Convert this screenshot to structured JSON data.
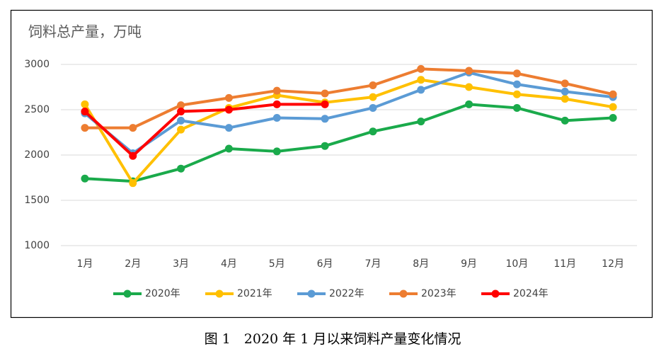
{
  "chart_data": {
    "type": "line",
    "title": "饲料总产量，万吨",
    "caption": "图 1　2020 年 1 月以来饲料产量变化情况",
    "categories": [
      "1月",
      "2月",
      "3月",
      "4月",
      "5月",
      "6月",
      "7月",
      "8月",
      "9月",
      "10月",
      "11月",
      "12月"
    ],
    "ylim": [
      1000,
      3000
    ],
    "yticks": [
      1000,
      1500,
      2000,
      2500,
      3000
    ],
    "grid": true,
    "legend": "bottom",
    "series": [
      {
        "name": "2020年",
        "color": "#1aaa4b",
        "values": [
          1740,
          1710,
          1850,
          2070,
          2040,
          2100,
          2260,
          2370,
          2560,
          2520,
          2380,
          2410
        ]
      },
      {
        "name": "2021年",
        "color": "#ffc000",
        "values": [
          2560,
          1690,
          2280,
          2520,
          2660,
          2580,
          2640,
          2830,
          2750,
          2670,
          2620,
          2530
        ]
      },
      {
        "name": "2022年",
        "color": "#5b9bd5",
        "values": [
          2460,
          2020,
          2380,
          2300,
          2410,
          2400,
          2520,
          2720,
          2910,
          2780,
          2700,
          2640
        ]
      },
      {
        "name": "2023年",
        "color": "#ed7d31",
        "values": [
          2300,
          2300,
          2550,
          2630,
          2710,
          2680,
          2770,
          2950,
          2930,
          2900,
          2790,
          2670
        ]
      },
      {
        "name": "2024年",
        "color": "#ff0000",
        "values": [
          2480,
          1990,
          2480,
          2500,
          2560,
          2560,
          null,
          null,
          null,
          null,
          null,
          null
        ]
      }
    ]
  }
}
